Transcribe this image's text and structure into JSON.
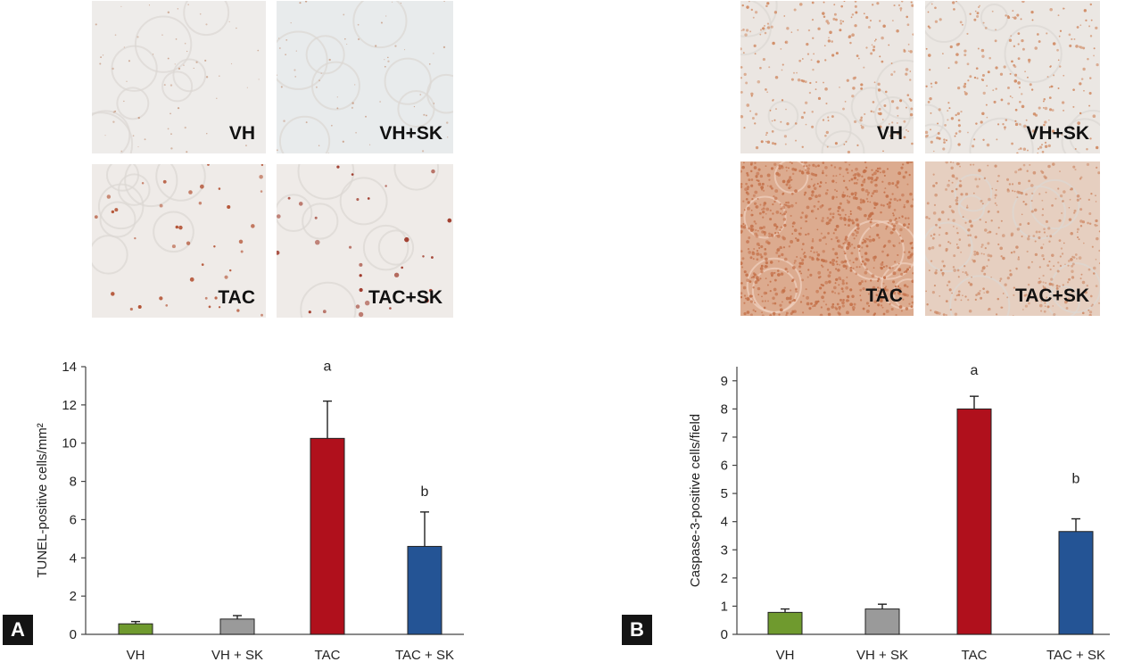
{
  "panels": {
    "A": {
      "letter": "A",
      "micrographs": {
        "top_left": "VH",
        "top_right": "VH+SK",
        "bottom_left": "TAC",
        "bottom_right": "TAC+SK"
      }
    },
    "B": {
      "letter": "B",
      "micrographs": {
        "top_left": "VH",
        "top_right": "VH+SK",
        "bottom_left": "TAC",
        "bottom_right": "TAC+SK"
      }
    }
  },
  "colors": {
    "VH": "#6f9a2e",
    "VH_SK": "#9a9a9a",
    "TAC": "#b0101c",
    "TAC_SK": "#245495",
    "stain_light": "#efe9e6",
    "stain_dense": "#dca98e"
  },
  "chart_data": [
    {
      "type": "bar",
      "categories": [
        "VH",
        "VH + SK",
        "TAC",
        "TAC + SK"
      ],
      "values": [
        0.55,
        0.8,
        10.25,
        4.6
      ],
      "errors": [
        0.12,
        0.18,
        1.95,
        1.8
      ],
      "annotations": [
        "",
        "",
        "a",
        "b"
      ],
      "ylabel": "TUNEL-positive cells/mm²",
      "xlabel": "",
      "ylim": [
        0,
        14
      ],
      "yticks": [
        0,
        2,
        4,
        6,
        8,
        10,
        12,
        14
      ],
      "grid": false
    },
    {
      "type": "bar",
      "categories": [
        "VH",
        "VH + SK",
        "TAC",
        "TAC + SK"
      ],
      "values": [
        0.78,
        0.9,
        8.0,
        3.65
      ],
      "errors": [
        0.12,
        0.17,
        0.45,
        0.45
      ],
      "annotations": [
        "",
        "",
        "a",
        "b"
      ],
      "ylabel": "Caspase-3-positive cells/field",
      "xlabel": "",
      "ylim": [
        0,
        9.5
      ],
      "yticks": [
        0,
        1,
        2,
        3,
        4,
        5,
        6,
        7,
        8,
        9
      ],
      "grid": false
    }
  ]
}
